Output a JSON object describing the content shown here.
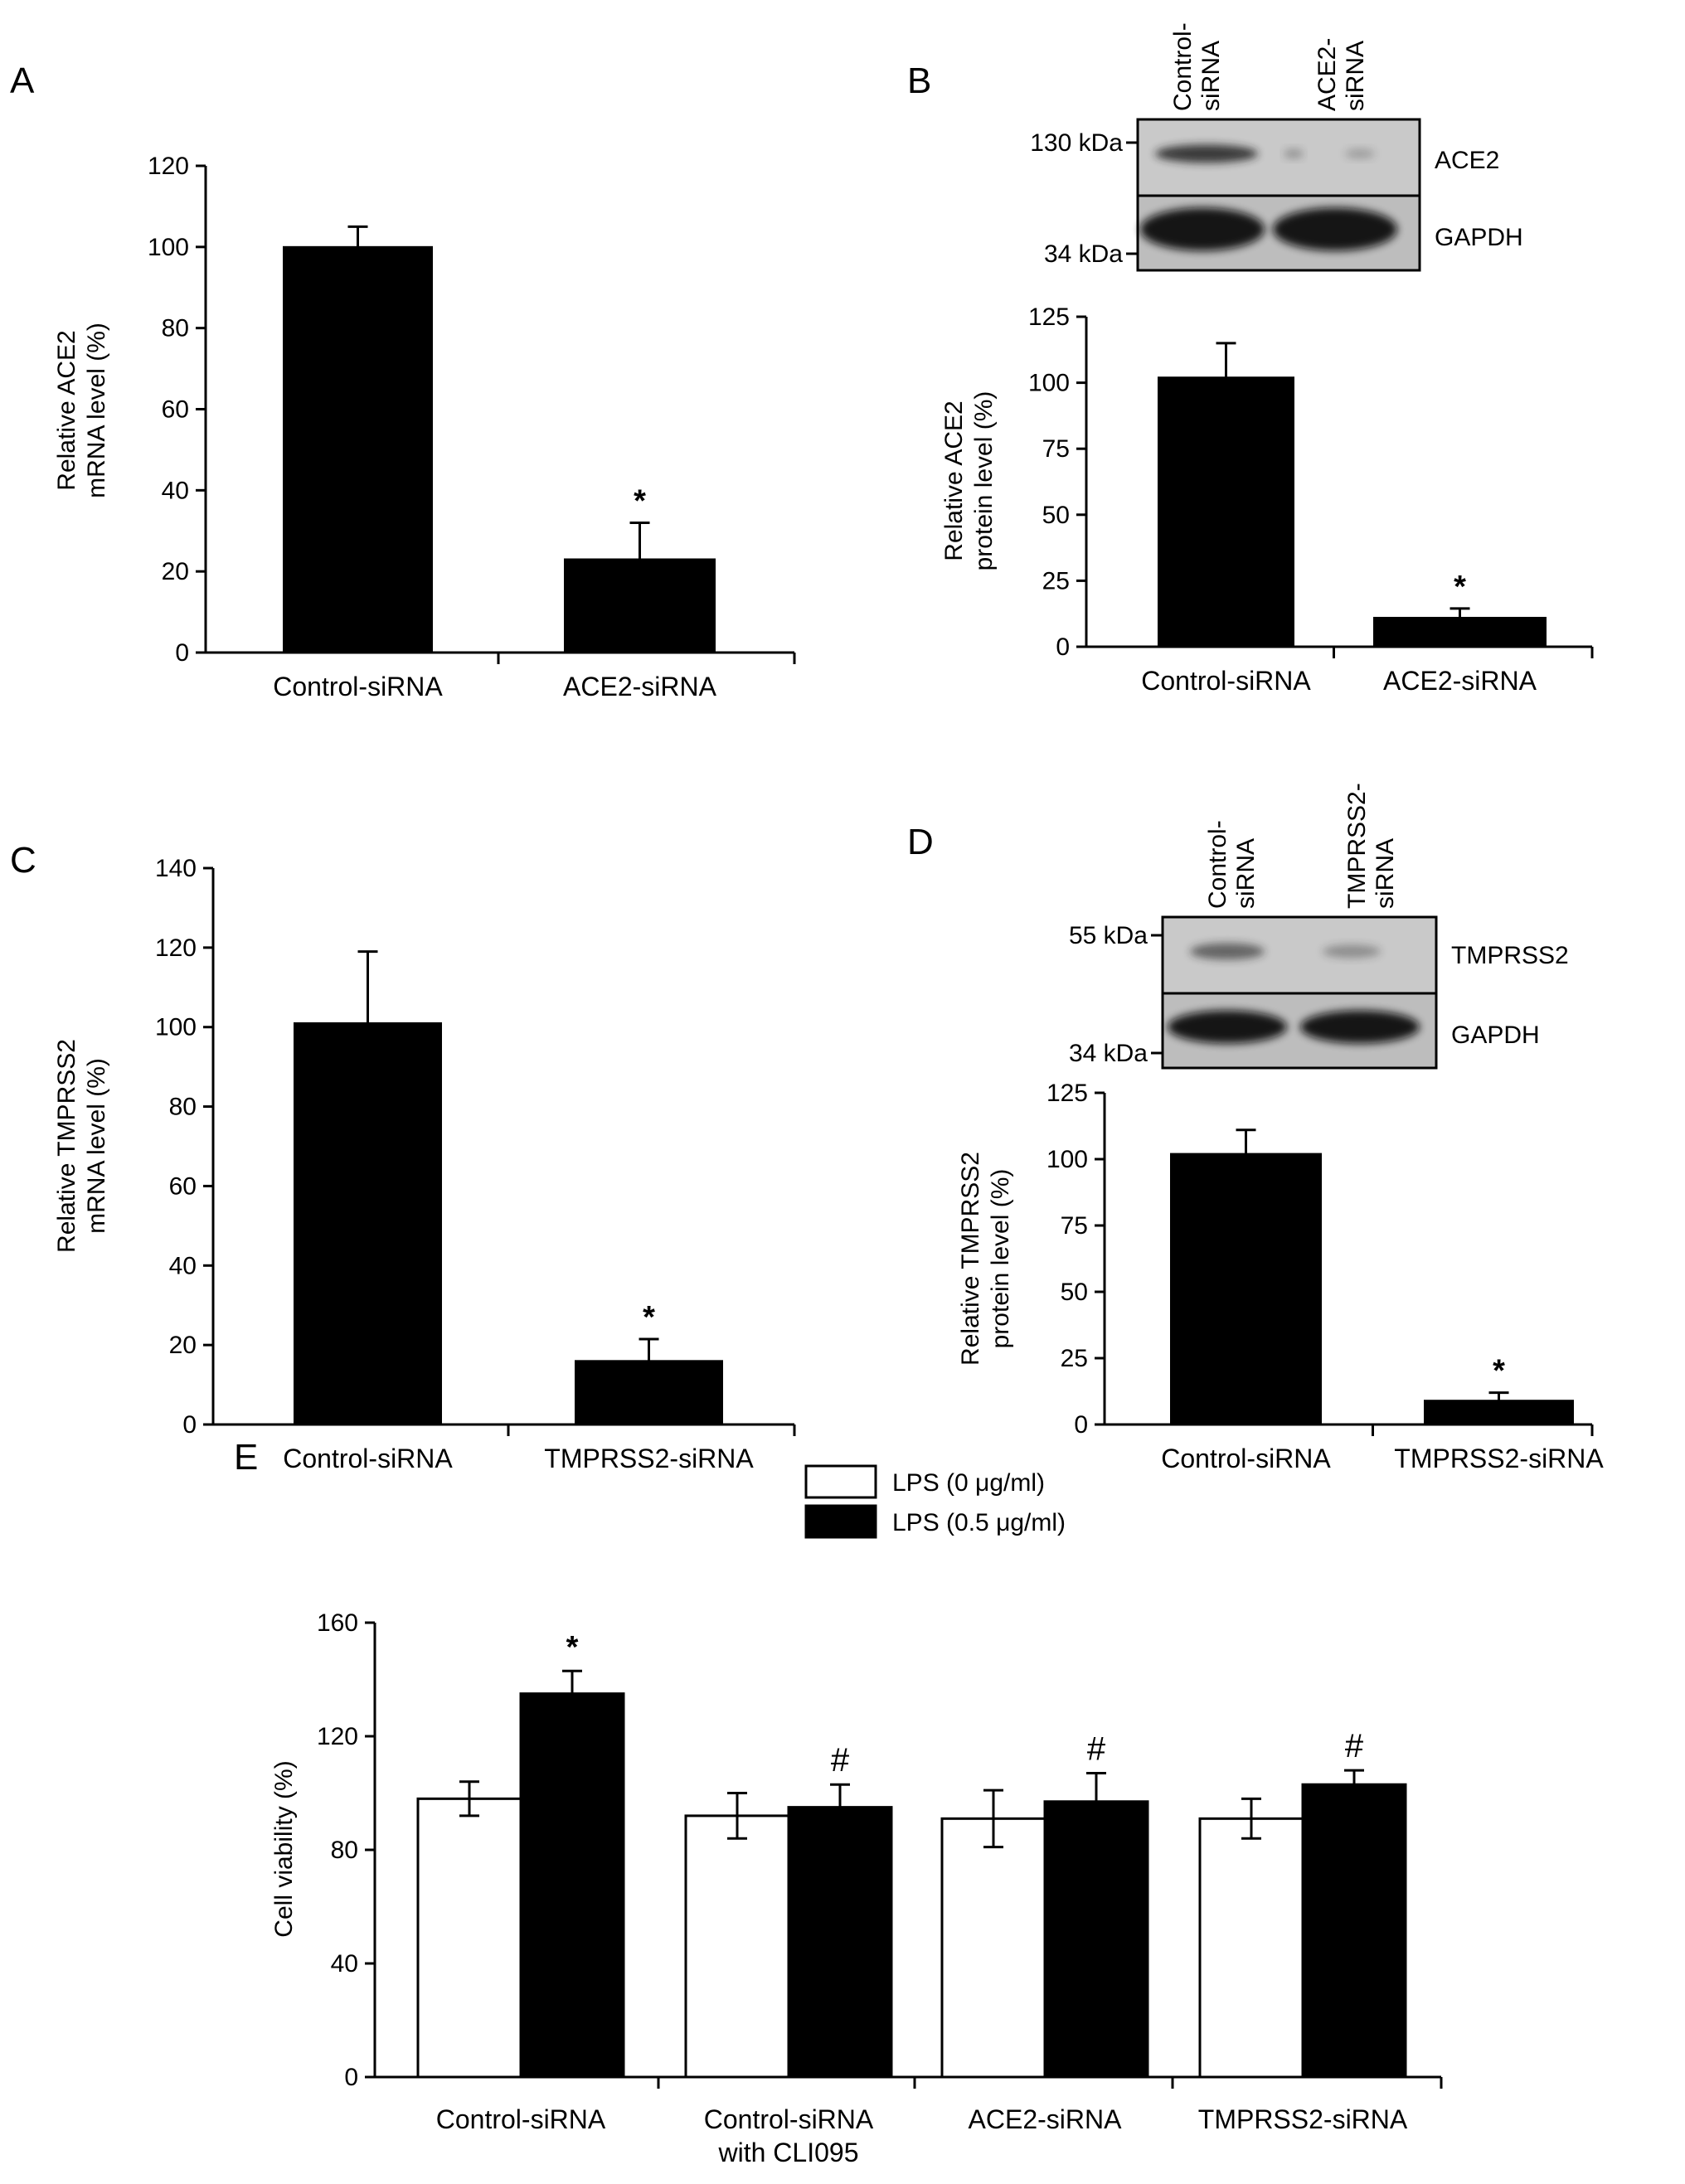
{
  "chart_data": [
    {
      "panel": "A",
      "type": "bar",
      "categories": [
        "Control-siRNA",
        "ACE2-siRNA"
      ],
      "values": [
        100,
        23
      ],
      "errors": [
        5,
        9
      ],
      "annotations": [
        "",
        "*"
      ],
      "ylabel": [
        "Relative ACE2",
        "mRNA level (%)"
      ],
      "ylim": [
        0,
        120
      ],
      "yticks": [
        "0",
        "20",
        "40",
        "60",
        "80",
        "100",
        "120"
      ],
      "bar_color": "#000000"
    },
    {
      "panel": "B",
      "type": "bar",
      "categories": [
        "Control-siRNA",
        "ACE2-siRNA"
      ],
      "values": [
        102,
        11
      ],
      "errors": [
        13,
        3.5
      ],
      "annotations": [
        "",
        "*"
      ],
      "ylabel": [
        "Relative ACE2",
        "protein level (%)"
      ],
      "ylim": [
        0,
        125
      ],
      "yticks": [
        "0",
        "25",
        "50",
        "75",
        "100",
        "125"
      ],
      "bar_color": "#000000",
      "blot": {
        "lanes": [
          [
            "Control-",
            "siRNA"
          ],
          [
            "ACE2-",
            "siRNA"
          ]
        ],
        "markers": [
          "130 kDa",
          "34 kDa"
        ],
        "rows": [
          "ACE2",
          "GAPDH"
        ]
      }
    },
    {
      "panel": "C",
      "type": "bar",
      "categories": [
        "Control-siRNA",
        "TMPRSS2-siRNA"
      ],
      "values": [
        101,
        16
      ],
      "errors": [
        18,
        5.5
      ],
      "annotations": [
        "",
        "*"
      ],
      "ylabel": [
        "Relative TMPRSS2",
        "mRNA level (%)"
      ],
      "ylim": [
        0,
        140
      ],
      "yticks": [
        "0",
        "20",
        "40",
        "60",
        "80",
        "100",
        "120",
        "140"
      ],
      "bar_color": "#000000"
    },
    {
      "panel": "D",
      "type": "bar",
      "categories": [
        "Control-siRNA",
        "TMPRSS2-siRNA"
      ],
      "values": [
        102,
        9
      ],
      "errors": [
        9,
        3
      ],
      "annotations": [
        "",
        "*"
      ],
      "ylabel": [
        "Relative TMPRSS2",
        "protein level (%)"
      ],
      "ylim": [
        0,
        125
      ],
      "yticks": [
        "0",
        "25",
        "50",
        "75",
        "100",
        "125"
      ],
      "bar_color": "#000000",
      "blot": {
        "lanes": [
          [
            "Control-",
            "siRNA"
          ],
          [
            "TMPRSS2-",
            "siRNA"
          ]
        ],
        "markers": [
          "55 kDa",
          "34 kDa"
        ],
        "rows": [
          "TMPRSS2",
          "GAPDH"
        ]
      }
    },
    {
      "panel": "E",
      "type": "bar",
      "categories": [
        [
          "Control-siRNA"
        ],
        [
          "Control-siRNA",
          "with CLI095"
        ],
        [
          "ACE2-siRNA"
        ],
        [
          "TMPRSS2-siRNA"
        ]
      ],
      "series": [
        {
          "name": "LPS (0 μg/ml)",
          "color": "#ffffff",
          "values": [
            98,
            92,
            91,
            91
          ],
          "errors": [
            6,
            8,
            10,
            7
          ],
          "annotations": [
            "",
            "",
            "",
            ""
          ]
        },
        {
          "name": "LPS (0.5 μg/ml)",
          "color": "#000000",
          "values": [
            135,
            95,
            97,
            103
          ],
          "errors": [
            8,
            8,
            10,
            5
          ],
          "annotations": [
            "*",
            "#",
            "#",
            "#"
          ]
        }
      ],
      "ylabel": [
        "Cell viability (%)"
      ],
      "ylim": [
        0,
        160
      ],
      "yticks": [
        "0",
        "40",
        "80",
        "120",
        "160"
      ],
      "legend": "top-center"
    }
  ]
}
